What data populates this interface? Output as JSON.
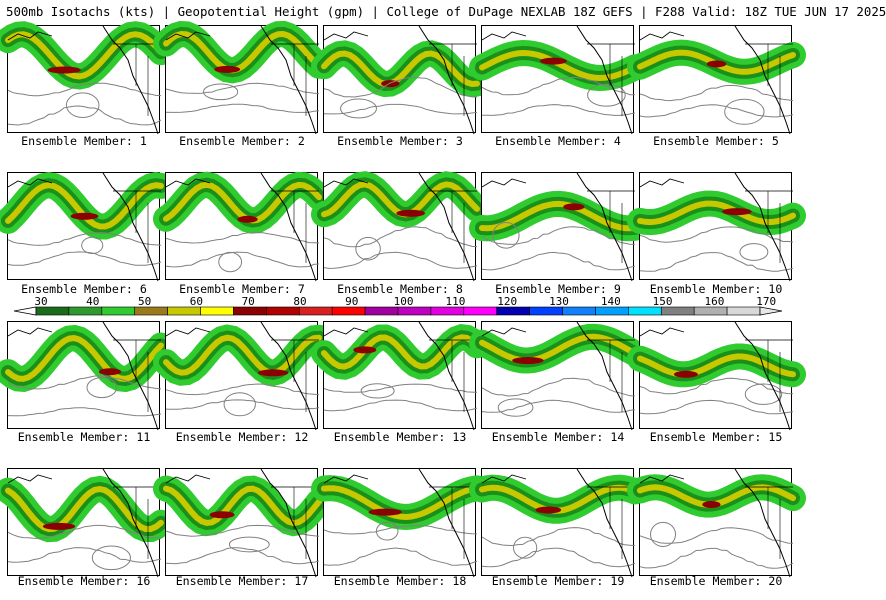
{
  "header": {
    "title": "500mb Isotachs (kts) | Geopotential Height (gpm) | College of DuPage NEXLAB   18Z GEFS | F288 Valid: 18Z TUE JUN 17 2025"
  },
  "panels": [
    {
      "caption": "Ensemble Member: 1"
    },
    {
      "caption": "Ensemble Member: 2"
    },
    {
      "caption": "Ensemble Member: 3"
    },
    {
      "caption": "Ensemble Member: 4"
    },
    {
      "caption": "Ensemble Member: 5"
    },
    {
      "caption": "Ensemble Member: 6"
    },
    {
      "caption": "Ensemble Member: 7"
    },
    {
      "caption": "Ensemble Member: 8"
    },
    {
      "caption": "Ensemble Member: 9"
    },
    {
      "caption": "Ensemble Member: 10"
    },
    {
      "caption": "Ensemble Member: 11"
    },
    {
      "caption": "Ensemble Member: 12"
    },
    {
      "caption": "Ensemble Member: 13"
    },
    {
      "caption": "Ensemble Member: 14"
    },
    {
      "caption": "Ensemble Member: 15"
    },
    {
      "caption": "Ensemble Member: 16"
    },
    {
      "caption": "Ensemble Member: 17"
    },
    {
      "caption": "Ensemble Member: 18"
    },
    {
      "caption": "Ensemble Member: 19"
    },
    {
      "caption": "Ensemble Member: 20"
    }
  ],
  "colorbar": {
    "labels": [
      "30",
      "40",
      "50",
      "60",
      "70",
      "80",
      "90",
      "100",
      "110",
      "120",
      "130",
      "140",
      "150",
      "160",
      "170"
    ],
    "colors": [
      "#1a6b1a",
      "#2e9a2e",
      "#2fcb2f",
      "#9a7a1a",
      "#c8c800",
      "#ffff00",
      "#8b0000",
      "#b00000",
      "#d82020",
      "#ff0000",
      "#a000a0",
      "#c000c0",
      "#e000e0",
      "#ff00ff",
      "#0000b0",
      "#0040ff",
      "#1080ff",
      "#00a0ff",
      "#00e0ff",
      "#808080",
      "#b0b0b0",
      "#d8d8d8"
    ]
  }
}
